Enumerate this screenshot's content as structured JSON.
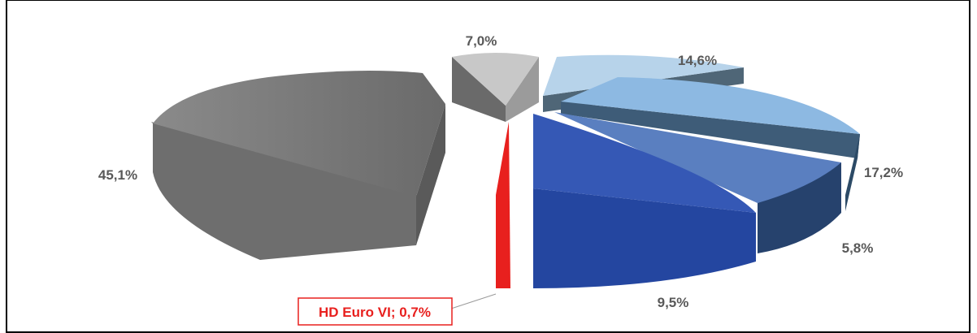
{
  "chart_data": {
    "type": "pie",
    "title": "",
    "slices": [
      {
        "label": "",
        "value": 7.0,
        "value_label": "7,0%",
        "color": "#c8c8c8"
      },
      {
        "label": "",
        "value": 14.6,
        "value_label": "14,6%",
        "color": "#b7d3ea"
      },
      {
        "label": "",
        "value": 17.2,
        "value_label": "17,2%",
        "color": "#8db9e2"
      },
      {
        "label": "",
        "value": 5.8,
        "value_label": "5,8%",
        "color": "#5a7fc0"
      },
      {
        "label": "",
        "value": 9.5,
        "value_label": "9,5%",
        "color": "#2f55a8"
      },
      {
        "label": "HD Euro VI",
        "value": 0.7,
        "value_label": "0,7%",
        "callout": "HD Euro VI; 0,7%",
        "color": "#e8201e"
      },
      {
        "label": "",
        "value": 45.1,
        "value_label": "45,1%",
        "color": "#7a7a7a"
      }
    ],
    "exploded": true,
    "style": "3d"
  }
}
